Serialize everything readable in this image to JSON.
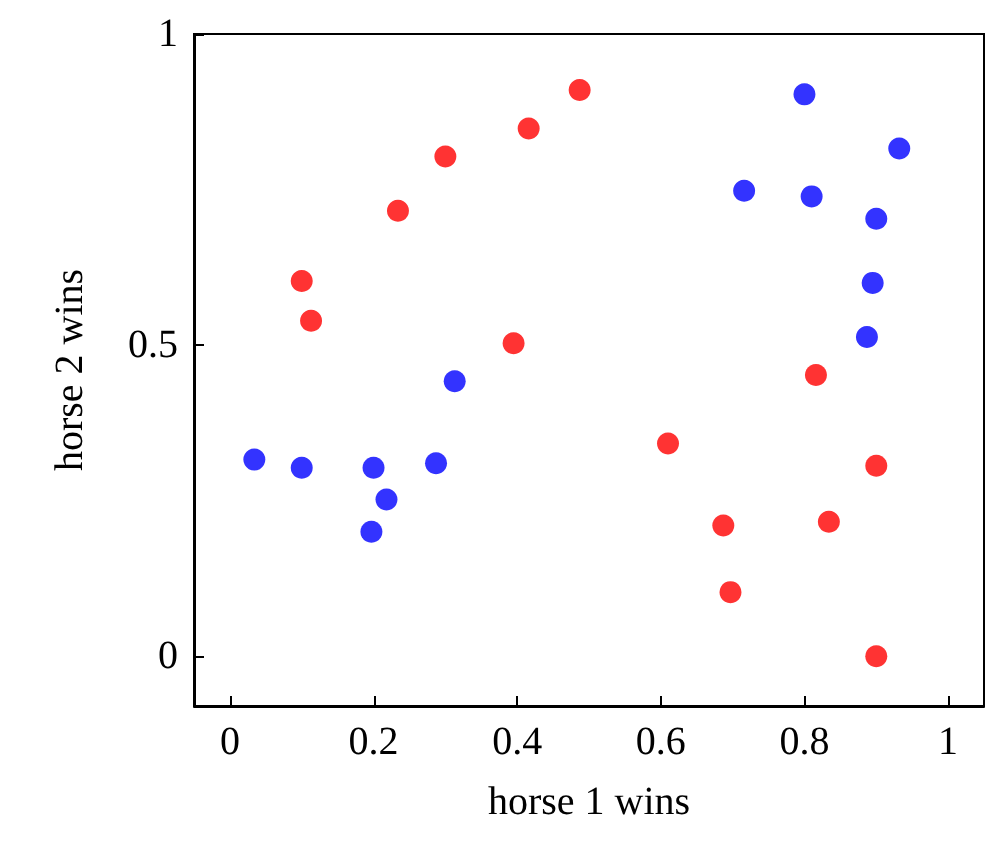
{
  "chart_data": {
    "type": "scatter",
    "xlabel": "horse 1 wins",
    "ylabel": "horse 2 wins",
    "xlim": [
      -0.05,
      1.05
    ],
    "ylim": [
      -0.08,
      1
    ],
    "xticks": [
      0,
      0.2,
      0.4,
      0.6,
      0.8,
      1
    ],
    "yticks": [
      0,
      0.5,
      1
    ],
    "grid": false,
    "marker": "circle",
    "series": [
      {
        "color": "#0000ff",
        "x": [
          0.034,
          0.1,
          0.2,
          0.218,
          0.197,
          0.287,
          0.313,
          0.716,
          0.8,
          0.81,
          0.9,
          0.932,
          0.895,
          0.887
        ],
        "values": [
          0.316,
          0.303,
          0.303,
          0.252,
          0.2,
          0.31,
          0.442,
          0.748,
          0.903,
          0.739,
          0.703,
          0.816,
          0.6,
          0.513
        ]
      },
      {
        "color": "#ff0000",
        "x": [
          0.1,
          0.113,
          0.234,
          0.3,
          0.416,
          0.487,
          0.395,
          0.61,
          0.687,
          0.697,
          0.816,
          0.834,
          0.9,
          0.9
        ],
        "values": [
          0.603,
          0.539,
          0.716,
          0.803,
          0.848,
          0.91,
          0.503,
          0.342,
          0.21,
          0.103,
          0.452,
          0.216,
          0.306,
          0
        ]
      }
    ]
  }
}
